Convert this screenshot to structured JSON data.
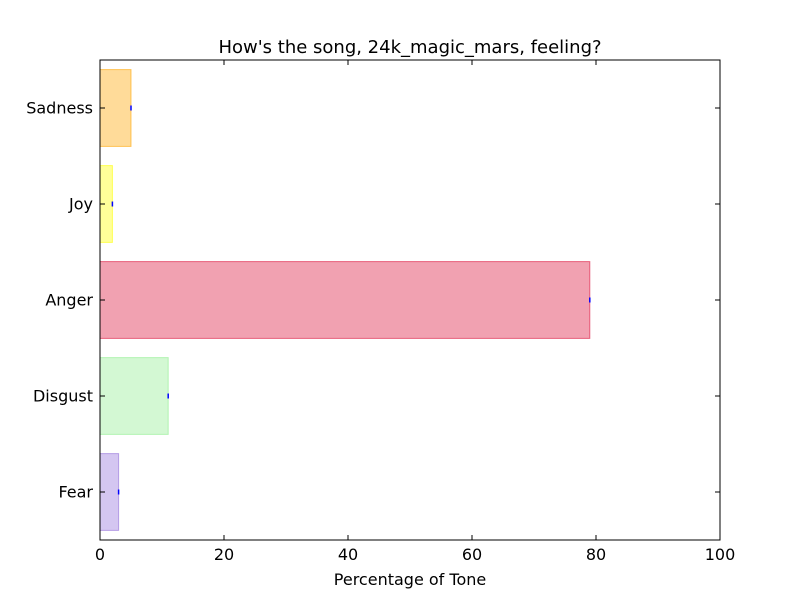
{
  "chart_data": {
    "type": "bar",
    "orientation": "horizontal",
    "title": "How's the song, 24k_magic_mars, feeling?",
    "xlabel": "Percentage of Tone",
    "ylabel": "",
    "xlim": [
      0,
      100
    ],
    "xticks": [
      "0",
      "20",
      "40",
      "60",
      "80",
      "100"
    ],
    "categories": [
      "Fear",
      "Disgust",
      "Anger",
      "Joy",
      "Sadness"
    ],
    "values": [
      3,
      11,
      79,
      2,
      5
    ],
    "colors": [
      "#9370db",
      "#90ee90",
      "#dc143c",
      "#ffff00",
      "#ffa500"
    ],
    "error_marker_color": "#0000ff",
    "grid": false
  }
}
